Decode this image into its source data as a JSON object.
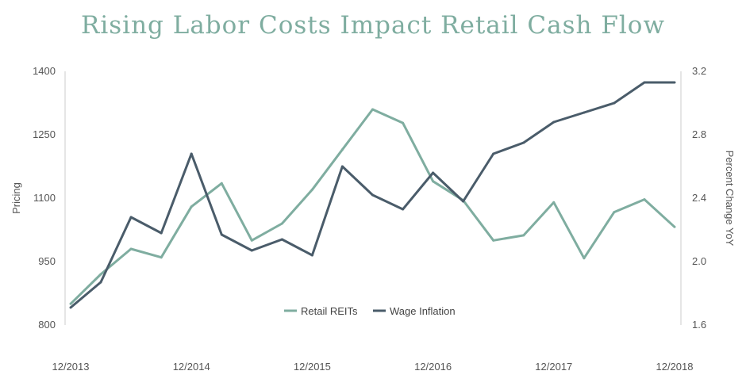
{
  "chart_data": {
    "type": "line",
    "title": "Rising Labor Costs Impact Retail Cash Flow",
    "x": [
      "2013-12",
      "2014-03",
      "2014-06",
      "2014-09",
      "2014-12",
      "2015-03",
      "2015-06",
      "2015-09",
      "2015-12",
      "2016-03",
      "2016-06",
      "2016-09",
      "2016-12",
      "2017-03",
      "2017-06",
      "2017-09",
      "2017-12",
      "2018-03",
      "2018-06",
      "2018-09",
      "2018-12"
    ],
    "x_tick_labels": [
      "12/2013",
      "12/2014",
      "12/2015",
      "12/2016",
      "12/2017",
      "12/2018"
    ],
    "ylabel": "Pricing",
    "ylim": [
      800,
      1400
    ],
    "yticks": [
      "1400",
      "1250",
      "1100",
      "950",
      "800"
    ],
    "y2label": "Percent Change YoY",
    "y2lim": [
      1.6,
      3.2
    ],
    "y2ticks": [
      "3.2",
      "2.8",
      "2.4",
      "2.0",
      "1.6"
    ],
    "grid": false,
    "legend_position": "bottom-center",
    "series": [
      {
        "name": "Retail REITs",
        "axis": "left",
        "color": "#7fada0",
        "values": [
          850,
          920,
          980,
          960,
          1080,
          1135,
          1000,
          1040,
          1120,
          1215,
          1310,
          1278,
          1140,
          1095,
          1000,
          1012,
          1090,
          958,
          1067,
          1097,
          1032
        ]
      },
      {
        "name": "Wage Inflation",
        "axis": "right",
        "color": "#4a5c6a",
        "values": [
          1.71,
          1.87,
          2.28,
          2.18,
          2.68,
          2.17,
          2.07,
          2.14,
          2.04,
          2.6,
          2.42,
          2.33,
          2.56,
          2.38,
          2.68,
          2.75,
          2.88,
          2.94,
          3.0,
          3.13,
          3.13
        ]
      }
    ],
    "title_color": "#7fada0",
    "axis_color": "#cccccc"
  }
}
